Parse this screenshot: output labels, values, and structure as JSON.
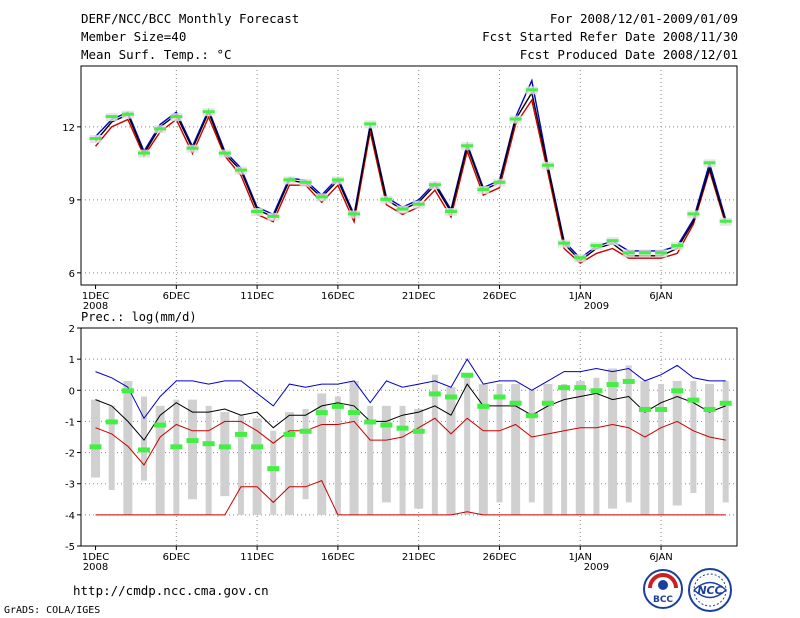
{
  "header": {
    "title": "DERF/NCC/BCC Monthly Forecast",
    "member_size": "Member Size=40",
    "variable": "Mean Surf. Temp.: °C",
    "forecast_period": "For 2008/12/01-2009/01/09",
    "start_date": "Fcst Started Refer Date 2008/11/30",
    "produced_date": "Fcst Produced Date 2008/12/01"
  },
  "footer": {
    "url": "http://cmdp.ncc.cma.gov.cn",
    "credit": "GrADS: COLA/IGES",
    "logo_left": "BCC",
    "logo_right": "NCC"
  },
  "colors": {
    "ensemble_max": "#0000cc",
    "ensemble_mean": "#000000",
    "ensemble_min": "#cc0000",
    "observation_marks": "#44ee44",
    "spread_bars": "#d0d0d0"
  },
  "chart_data": [
    {
      "type": "line",
      "title": "Mean Surf. Temp.: °C",
      "x_tick_labels": [
        "1DEC",
        "6DEC",
        "11DEC",
        "16DEC",
        "21DEC",
        "26DEC",
        "1JAN",
        "6JAN"
      ],
      "x_year_labels": [
        "2008",
        "2009"
      ],
      "xlim": [
        0,
        39
      ],
      "ylim": [
        5.5,
        14.5
      ],
      "y_ticks": [
        6,
        9,
        12
      ],
      "series": [
        {
          "name": "max",
          "values": [
            11.6,
            12.3,
            12.6,
            11.0,
            12.1,
            12.6,
            11.2,
            12.7,
            11.0,
            10.3,
            8.7,
            8.4,
            9.9,
            9.8,
            9.2,
            9.9,
            8.4,
            12.1,
            9.1,
            8.7,
            9.0,
            9.7,
            8.6,
            11.3,
            9.5,
            9.8,
            12.4,
            13.9,
            10.4,
            7.3,
            6.6,
            7.1,
            7.3,
            6.9,
            6.9,
            6.9,
            7.1,
            8.2,
            10.5,
            8.2
          ]
        },
        {
          "name": "mean",
          "values": [
            11.4,
            12.2,
            12.5,
            10.9,
            12.0,
            12.5,
            11.1,
            12.6,
            10.9,
            10.2,
            8.6,
            8.3,
            9.8,
            9.7,
            9.1,
            9.8,
            8.3,
            12.0,
            9.0,
            8.6,
            8.9,
            9.6,
            8.5,
            11.2,
            9.4,
            9.7,
            12.3,
            13.4,
            10.3,
            7.2,
            6.5,
            7.0,
            7.2,
            6.7,
            6.7,
            6.7,
            7.0,
            8.1,
            10.3,
            8.1
          ]
        },
        {
          "name": "min",
          "values": [
            11.2,
            12.0,
            12.3,
            10.8,
            11.8,
            12.3,
            10.9,
            12.4,
            10.8,
            10.0,
            8.4,
            8.1,
            9.6,
            9.6,
            8.9,
            9.6,
            8.1,
            11.8,
            8.8,
            8.4,
            8.7,
            9.4,
            8.3,
            11.0,
            9.2,
            9.5,
            12.1,
            13.1,
            10.1,
            7.0,
            6.4,
            6.8,
            7.0,
            6.6,
            6.6,
            6.6,
            6.8,
            8.0,
            10.2,
            8.0
          ]
        },
        {
          "name": "observation",
          "values": [
            11.5,
            12.4,
            12.5,
            10.9,
            11.9,
            12.4,
            11.1,
            12.6,
            10.9,
            10.2,
            8.5,
            8.3,
            9.8,
            9.7,
            9.1,
            9.8,
            8.4,
            12.1,
            9.0,
            8.6,
            8.8,
            9.6,
            8.5,
            11.2,
            9.4,
            9.7,
            12.3,
            13.5,
            10.4,
            7.2,
            6.6,
            7.1,
            7.3,
            6.8,
            6.8,
            6.8,
            7.1,
            8.4,
            10.5,
            8.1
          ]
        }
      ]
    },
    {
      "type": "line",
      "title": "Prec.: log(mm/d)",
      "x_tick_labels": [
        "1DEC",
        "6DEC",
        "11DEC",
        "16DEC",
        "21DEC",
        "26DEC",
        "1JAN",
        "6JAN"
      ],
      "x_year_labels": [
        "2008",
        "2009"
      ],
      "xlim": [
        0,
        39
      ],
      "ylim": [
        -5,
        2
      ],
      "y_ticks": [
        -5,
        -4,
        -3,
        -2,
        -1,
        0,
        1,
        2
      ],
      "series": [
        {
          "name": "max",
          "values": [
            0.6,
            0.4,
            0.1,
            -0.9,
            -0.2,
            0.3,
            0.3,
            0.2,
            0.3,
            0.3,
            -0.1,
            -0.5,
            0.2,
            0.1,
            0.2,
            0.2,
            0.3,
            -0.4,
            0.3,
            0.1,
            0.2,
            0.3,
            0.1,
            1.0,
            0.2,
            0.3,
            0.3,
            0.0,
            0.3,
            0.6,
            0.6,
            0.7,
            0.6,
            0.7,
            0.3,
            0.5,
            0.8,
            0.4,
            0.3,
            0.3
          ]
        },
        {
          "name": "mean",
          "values": [
            -0.3,
            -0.5,
            -1.0,
            -1.6,
            -0.8,
            -0.4,
            -0.7,
            -0.7,
            -0.6,
            -0.8,
            -0.7,
            -1.2,
            -0.8,
            -0.8,
            -0.5,
            -0.4,
            -0.5,
            -1.0,
            -1.0,
            -0.8,
            -0.7,
            -0.5,
            -0.8,
            0.2,
            -0.5,
            -0.5,
            -0.5,
            -0.8,
            -0.5,
            -0.3,
            -0.2,
            -0.1,
            -0.3,
            -0.2,
            -0.7,
            -0.4,
            -0.2,
            -0.4,
            -0.7,
            -0.5
          ]
        },
        {
          "name": "min",
          "values": [
            -1.2,
            -1.4,
            -1.8,
            -2.4,
            -1.5,
            -1.1,
            -1.3,
            -1.3,
            -1.0,
            -1.0,
            -1.3,
            -1.7,
            -1.3,
            -1.3,
            -1.1,
            -1.1,
            -1.0,
            -1.6,
            -1.6,
            -1.5,
            -1.2,
            -0.9,
            -1.4,
            -0.9,
            -1.3,
            -1.3,
            -1.1,
            -1.5,
            -1.4,
            -1.3,
            -1.2,
            -1.2,
            -1.1,
            -1.2,
            -1.5,
            -1.2,
            -1.0,
            -1.3,
            -1.5,
            -1.6
          ]
        },
        {
          "name": "min_secondary",
          "values": [
            -4,
            -4,
            -4,
            -4,
            -4,
            -4,
            -4,
            -4,
            -4,
            -3.1,
            -3.1,
            -3.6,
            -3.1,
            -3.1,
            -2.9,
            -4,
            -4,
            -4,
            -4,
            -4,
            -4,
            -4,
            -4,
            -3.9,
            -4,
            -4,
            -4,
            -4,
            -4,
            -4,
            -4,
            -4,
            -4,
            -4,
            -4,
            -4,
            -4,
            -4,
            -4,
            -4
          ]
        },
        {
          "name": "observation",
          "values": [
            -1.8,
            -1.0,
            0.0,
            -1.9,
            -1.1,
            -1.8,
            -1.6,
            -1.7,
            -1.8,
            -1.4,
            -1.8,
            -2.5,
            -1.4,
            -1.3,
            -0.7,
            -0.5,
            -0.7,
            -1.0,
            -1.1,
            -1.2,
            -1.3,
            -0.1,
            -0.2,
            0.5,
            -0.5,
            -0.2,
            -0.4,
            -0.8,
            -0.4,
            0.1,
            0.1,
            0.0,
            0.2,
            0.3,
            -0.6,
            -0.6,
            0.0,
            -0.3,
            -0.6,
            -0.4
          ]
        },
        {
          "name": "spread_top",
          "values": [
            -0.3,
            -0.5,
            0.3,
            -0.2,
            -0.5,
            -0.3,
            -0.3,
            -0.5,
            -0.7,
            -0.8,
            -0.9,
            -1.3,
            -0.7,
            -0.6,
            -0.1,
            -0.2,
            0.3,
            -0.5,
            -0.5,
            -0.5,
            -0.6,
            0.5,
            0.1,
            0.5,
            0.2,
            0.2,
            0.2,
            0.0,
            0.2,
            0.2,
            0.3,
            0.4,
            0.7,
            0.8,
            0.3,
            0.2,
            0.3,
            0.3,
            0.2,
            0.3
          ]
        },
        {
          "name": "spread_bottom",
          "values": [
            -2.8,
            -3.2,
            -4,
            -2.9,
            -4,
            -4,
            -3.5,
            -4,
            -3.4,
            -4,
            -4,
            -4,
            -4,
            -3.5,
            -4,
            -4,
            -4,
            -4,
            -3.6,
            -4,
            -3.8,
            -4,
            -4,
            -4,
            -4,
            -3.6,
            -4,
            -3.6,
            -4,
            -4,
            -4,
            -4,
            -3.8,
            -3.6,
            -4,
            -4,
            -3.7,
            -3.3,
            -4,
            -3.6
          ]
        }
      ]
    }
  ]
}
